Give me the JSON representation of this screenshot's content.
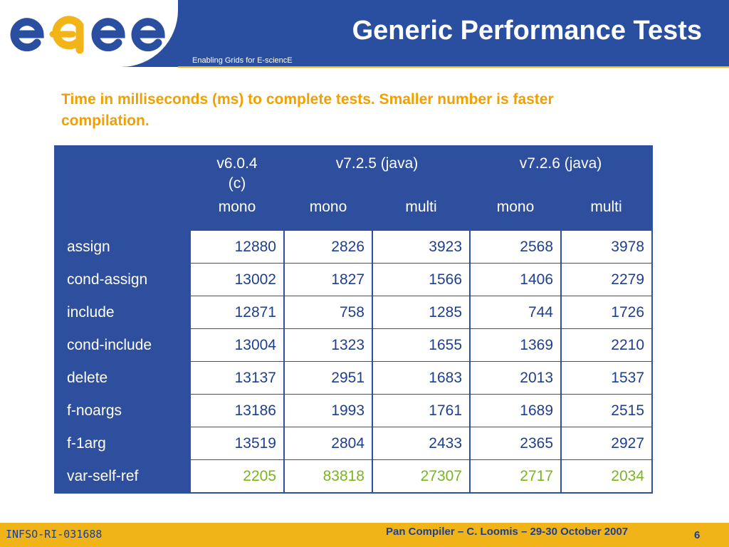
{
  "header": {
    "logo_text": "egee",
    "title": "Generic Performance Tests",
    "tagline": "Enabling Grids for E-sciencE"
  },
  "subtitle": "Time in milliseconds (ms) to complete tests.  Smaller number is faster compilation.",
  "table": {
    "version_headers": [
      {
        "label": "v6.0.4\n(c)",
        "colspan": 1
      },
      {
        "label": "v7.2.5 (java)",
        "colspan": 2
      },
      {
        "label": "v7.2.6 (java)",
        "colspan": 2
      }
    ],
    "mode_headers": [
      "mono",
      "mono",
      "multi",
      "mono",
      "multi"
    ],
    "rows": [
      {
        "name": "assign",
        "values": [
          "12880",
          "2826",
          "3923",
          "2568",
          "3978"
        ]
      },
      {
        "name": "cond-assign",
        "values": [
          "13002",
          "1827",
          "1566",
          "1406",
          "2279"
        ]
      },
      {
        "name": "include",
        "values": [
          "12871",
          "758",
          "1285",
          "744",
          "1726"
        ]
      },
      {
        "name": "cond-include",
        "values": [
          "13004",
          "1323",
          "1655",
          "1369",
          "2210"
        ]
      },
      {
        "name": "delete",
        "values": [
          "13137",
          "2951",
          "1683",
          "2013",
          "1537"
        ]
      },
      {
        "name": "f-noargs",
        "values": [
          "13186",
          "1993",
          "1761",
          "1689",
          "2515"
        ]
      },
      {
        "name": "f-1arg",
        "values": [
          "13519",
          "2804",
          "2433",
          "2365",
          "2927"
        ]
      },
      {
        "name": "var-self-ref",
        "values": [
          "2205",
          "83818",
          "27307",
          "2717",
          "2034"
        ]
      }
    ],
    "highlight_row_color": "#7ab51d",
    "value_color": "#1e3f8e",
    "header_bg": "#2e4f9e"
  },
  "footer": {
    "id": "INFSO-RI-031688",
    "center": "Pan Compiler  – C. Loomis – 29-30 October 2007",
    "page": "6"
  },
  "colors": {
    "header_bg": "#2a4fa0",
    "accent": "#f0a000",
    "footer_bg": "#f0b418"
  }
}
